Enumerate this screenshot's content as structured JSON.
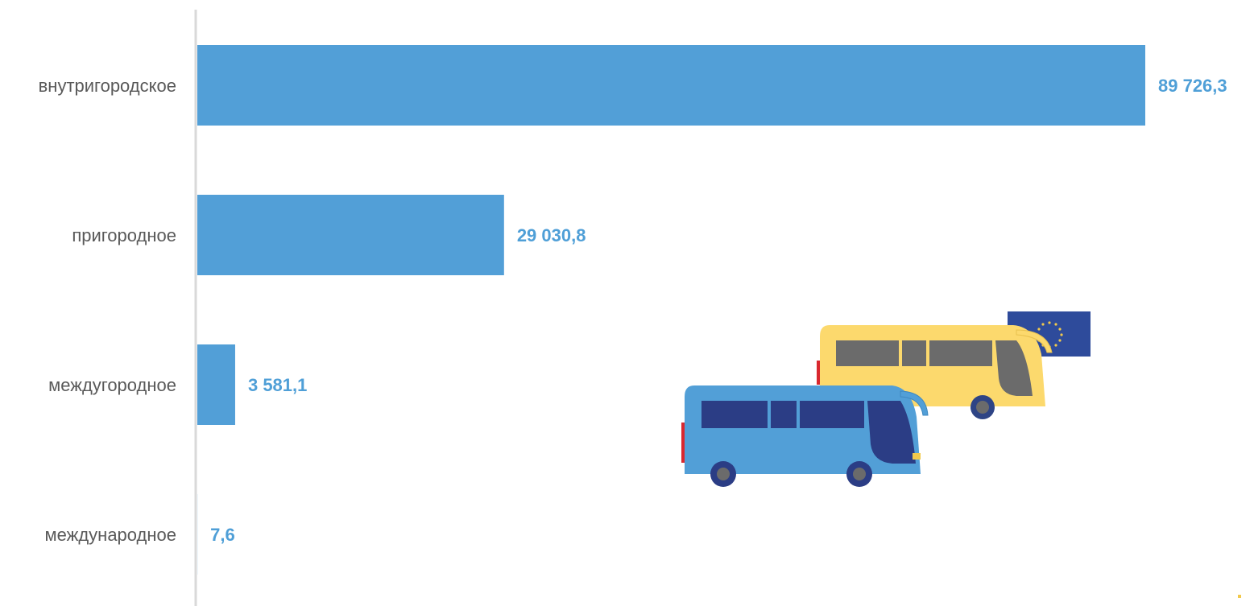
{
  "chart_data": {
    "type": "bar",
    "orientation": "horizontal",
    "categories": [
      "внутригородское",
      "пригородное",
      "междугородное",
      "международное"
    ],
    "values": [
      89726.3,
      29030.8,
      3581.1,
      7.6
    ],
    "value_labels": [
      "89 726,3",
      "29 030,8",
      "3 581,1",
      "7,6"
    ],
    "title": "",
    "xlabel": "",
    "ylabel": "",
    "xlim": [
      0,
      89726.3
    ],
    "grid": false,
    "legend": "none",
    "colors": {
      "bar": "#529fd7",
      "value_label": "#4f9fd7",
      "category_label": "#595959",
      "axis": "#d9d9d9"
    }
  },
  "illustration": {
    "icons": [
      "blue-bus-icon",
      "yellow-bus-icon",
      "eu-flag-icon"
    ]
  }
}
